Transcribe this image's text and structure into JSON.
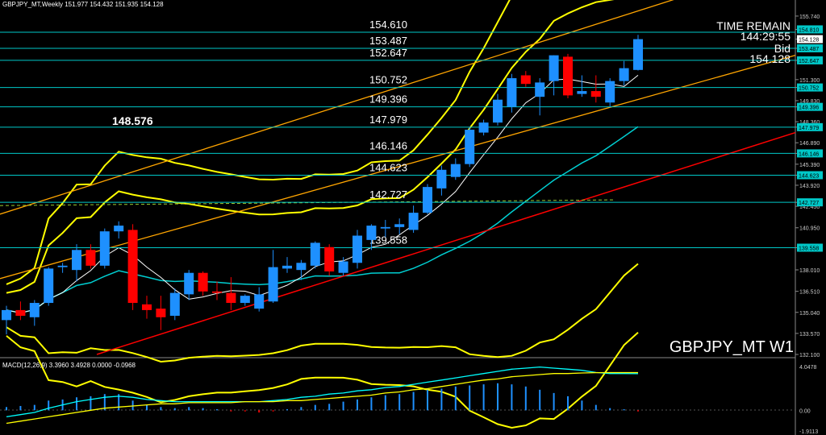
{
  "header": {
    "symbol_info": "GBPJPY_MT,Weekly  151.977 154.432 151.935 154.128",
    "chart_title": "GBPJPY_MT W1",
    "time_remain_label": "TIME REMAIN",
    "time_remain_value": "144:29:55",
    "bid_label": "Bid",
    "bid_value": "154.128",
    "highlight_level": "148.576"
  },
  "macd": {
    "label": "MACD(12,26,9) 3.3960 3.4928 0.0000 -0.0968",
    "scale_top": "4.0478",
    "scale_zero": "0.00",
    "scale_bottom": "-1.9113"
  },
  "colors": {
    "background": "#000000",
    "bull": "#1e90ff",
    "bear": "#ff0000",
    "level_line": "#00c8c8",
    "bollinger": "#ffff00",
    "channel": "#ffa500",
    "trend": "#ff0000",
    "signal": "#ffff00",
    "macd_main": "#00ffff"
  },
  "chart_data": {
    "type": "candlestick",
    "instrument": "GBPJPY_MT",
    "timeframe": "W1",
    "ylim": [
      132.1,
      156.3
    ],
    "price_axis": [
      "155.740",
      "154.810",
      "154.128",
      "153.487",
      "152.647",
      "151.300",
      "150.752",
      "149.830",
      "149.396",
      "148.360",
      "147.979",
      "146.890",
      "146.146",
      "145.390",
      "144.623",
      "143.920",
      "142.727",
      "142.450",
      "140.950",
      "139.558",
      "138.010",
      "136.510",
      "135.040",
      "133.570",
      "132.100"
    ],
    "level_lines": [
      {
        "value": 154.61,
        "label": "154.610"
      },
      {
        "value": 153.487,
        "label": "153.487"
      },
      {
        "value": 152.647,
        "label": "152.647"
      },
      {
        "value": 150.752,
        "label": "150.752"
      },
      {
        "value": 149.396,
        "label": "149.396"
      },
      {
        "value": 147.979,
        "label": "147.979"
      },
      {
        "value": 146.146,
        "label": "146.146"
      },
      {
        "value": 144.623,
        "label": "144.623"
      },
      {
        "value": 142.727,
        "label": "142.727"
      },
      {
        "value": 139.558,
        "label": "139.558"
      }
    ],
    "axis_tags": [
      "154.810",
      "154.128",
      "153.487",
      "152.647",
      "150.752",
      "149.396",
      "147.979",
      "146.146",
      "144.623",
      "142.727",
      "139.558"
    ],
    "candles": [
      {
        "o": 134.5,
        "h": 135.5,
        "l": 133.5,
        "c": 135.2
      },
      {
        "o": 135.2,
        "h": 135.8,
        "l": 134.5,
        "c": 134.8
      },
      {
        "o": 134.7,
        "h": 135.9,
        "l": 134.1,
        "c": 135.7
      },
      {
        "o": 135.7,
        "h": 138.2,
        "l": 135.5,
        "c": 138.1
      },
      {
        "o": 138.2,
        "h": 138.5,
        "l": 137.8,
        "c": 138.3
      },
      {
        "o": 138.0,
        "h": 139.8,
        "l": 137.2,
        "c": 139.4
      },
      {
        "o": 139.4,
        "h": 139.8,
        "l": 138.1,
        "c": 138.3
      },
      {
        "o": 138.3,
        "h": 140.9,
        "l": 138.1,
        "c": 140.7
      },
      {
        "o": 140.7,
        "h": 141.4,
        "l": 140.2,
        "c": 141.1
      },
      {
        "o": 140.8,
        "h": 141.2,
        "l": 135.2,
        "c": 135.7
      },
      {
        "o": 135.6,
        "h": 136.2,
        "l": 134.6,
        "c": 135.2
      },
      {
        "o": 135.3,
        "h": 136.2,
        "l": 133.8,
        "c": 134.7
      },
      {
        "o": 134.8,
        "h": 136.7,
        "l": 134.5,
        "c": 136.4
      },
      {
        "o": 136.3,
        "h": 138.0,
        "l": 135.9,
        "c": 137.8
      },
      {
        "o": 137.8,
        "h": 137.9,
        "l": 136.2,
        "c": 136.5
      },
      {
        "o": 136.5,
        "h": 137.2,
        "l": 135.9,
        "c": 136.4
      },
      {
        "o": 136.4,
        "h": 137.5,
        "l": 135.2,
        "c": 135.7
      },
      {
        "o": 135.7,
        "h": 136.3,
        "l": 135.5,
        "c": 136.2
      },
      {
        "o": 135.3,
        "h": 136.8,
        "l": 135.1,
        "c": 136.3
      },
      {
        "o": 135.8,
        "h": 139.4,
        "l": 135.7,
        "c": 138.2
      },
      {
        "o": 138.1,
        "h": 138.9,
        "l": 137.8,
        "c": 138.3
      },
      {
        "o": 138.0,
        "h": 138.7,
        "l": 137.3,
        "c": 138.5
      },
      {
        "o": 138.3,
        "h": 140.0,
        "l": 138.1,
        "c": 139.9
      },
      {
        "o": 139.6,
        "h": 139.8,
        "l": 137.6,
        "c": 137.9
      },
      {
        "o": 137.8,
        "h": 138.9,
        "l": 137.6,
        "c": 138.6
      },
      {
        "o": 138.5,
        "h": 140.8,
        "l": 138.1,
        "c": 140.4
      },
      {
        "o": 140.1,
        "h": 141.2,
        "l": 139.4,
        "c": 141.1
      },
      {
        "o": 140.9,
        "h": 141.5,
        "l": 140.3,
        "c": 141.0
      },
      {
        "o": 141.0,
        "h": 141.6,
        "l": 140.5,
        "c": 141.2
      },
      {
        "o": 140.8,
        "h": 142.5,
        "l": 140.6,
        "c": 142.0
      },
      {
        "o": 142.0,
        "h": 144.0,
        "l": 141.9,
        "c": 143.8
      },
      {
        "o": 143.7,
        "h": 145.3,
        "l": 143.2,
        "c": 145.0
      },
      {
        "o": 144.5,
        "h": 145.8,
        "l": 144.3,
        "c": 145.4
      },
      {
        "o": 145.4,
        "h": 148.0,
        "l": 145.2,
        "c": 147.8
      },
      {
        "o": 147.6,
        "h": 148.5,
        "l": 147.4,
        "c": 148.3
      },
      {
        "o": 148.3,
        "h": 150.3,
        "l": 148.1,
        "c": 149.9
      },
      {
        "o": 149.4,
        "h": 151.7,
        "l": 149.0,
        "c": 151.4
      },
      {
        "o": 151.6,
        "h": 151.9,
        "l": 150.8,
        "c": 151.0
      },
      {
        "o": 150.1,
        "h": 151.4,
        "l": 148.8,
        "c": 151.1
      },
      {
        "o": 151.2,
        "h": 153.0,
        "l": 150.2,
        "c": 153.0
      },
      {
        "o": 152.9,
        "h": 153.1,
        "l": 150.0,
        "c": 150.2
      },
      {
        "o": 150.3,
        "h": 151.6,
        "l": 150.1,
        "c": 150.5
      },
      {
        "o": 150.5,
        "h": 151.6,
        "l": 149.7,
        "c": 150.1
      },
      {
        "o": 149.7,
        "h": 151.4,
        "l": 149.4,
        "c": 151.2
      },
      {
        "o": 151.2,
        "h": 152.6,
        "l": 150.9,
        "c": 152.1
      },
      {
        "o": 151.977,
        "h": 154.432,
        "l": 151.935,
        "c": 154.128
      }
    ],
    "macd_hist": [
      0.3,
      0.4,
      0.5,
      0.9,
      1.0,
      1.2,
      1.3,
      1.5,
      1.5,
      0.9,
      0.5,
      0.3,
      0.2,
      0.3,
      0.2,
      0.1,
      -0.1,
      -0.1,
      -0.2,
      -0.1,
      0.1,
      0.3,
      0.5,
      0.6,
      0.8,
      1.0,
      1.2,
      1.4,
      1.5,
      1.7,
      1.9,
      2.0,
      2.2,
      2.3,
      2.4,
      2.5,
      2.4,
      2.2,
      1.9,
      1.6,
      1.3,
      0.9,
      0.5,
      0.2,
      0.1,
      -0.1
    ],
    "macd_main": [
      -0.6,
      -0.4,
      -0.2,
      0.2,
      0.5,
      0.8,
      1.0,
      1.2,
      1.3,
      1.2,
      1.0,
      0.9,
      0.8,
      0.8,
      0.8,
      0.8,
      0.8,
      0.8,
      0.8,
      0.9,
      1.0,
      1.2,
      1.3,
      1.5,
      1.6,
      1.8,
      1.9,
      2.1,
      2.2,
      2.4,
      2.6,
      2.8,
      3.0,
      3.2,
      3.4,
      3.6,
      3.8,
      3.9,
      4.0,
      3.9,
      3.8,
      3.7,
      3.5,
      3.4,
      3.4,
      3.396
    ],
    "macd_signal": [
      -1.2,
      -1.0,
      -0.8,
      -0.6,
      -0.4,
      -0.2,
      0.0,
      0.2,
      0.3,
      0.4,
      0.5,
      0.6,
      0.6,
      0.7,
      0.7,
      0.7,
      0.7,
      0.8,
      0.8,
      0.8,
      0.9,
      0.9,
      1.0,
      1.1,
      1.2,
      1.3,
      1.4,
      1.6,
      1.7,
      1.9,
      2.0,
      2.2,
      2.4,
      2.6,
      2.8,
      2.9,
      3.1,
      3.2,
      3.3,
      3.4,
      3.4,
      3.45,
      3.48,
      3.49,
      3.49,
      3.4928
    ],
    "macd_range": [
      -1.9113,
      4.0478
    ]
  }
}
